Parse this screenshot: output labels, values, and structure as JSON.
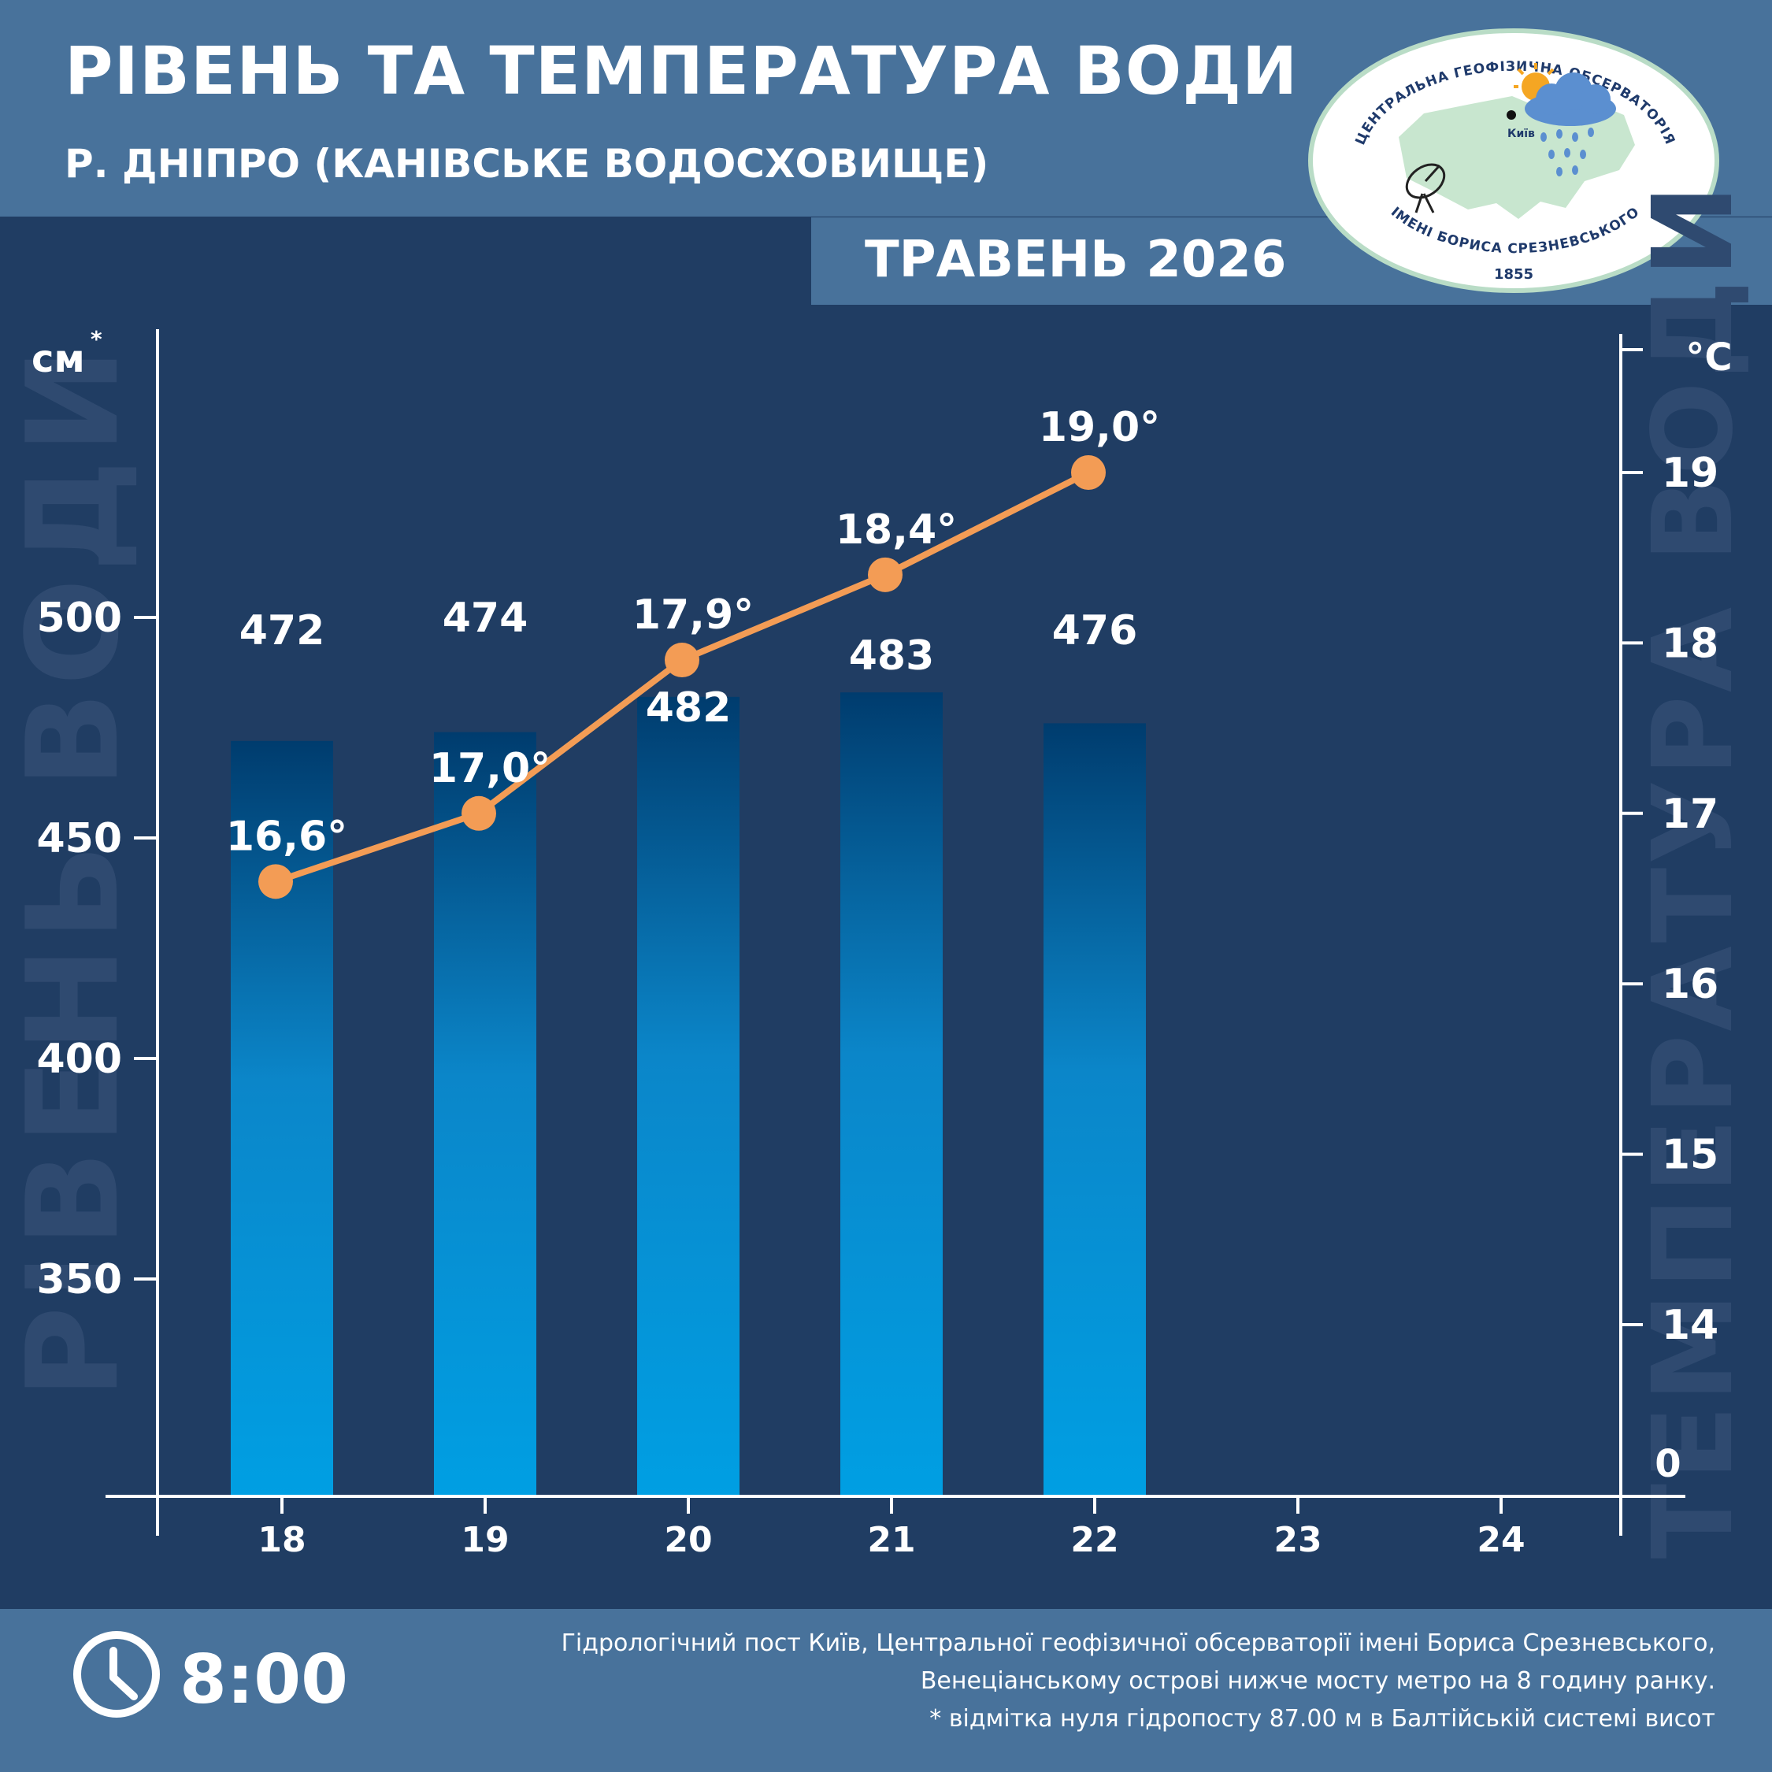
{
  "header": {
    "title": "РІВЕНЬ ТА ТЕМПЕРАТУРА ВОДИ",
    "subtitle": "Р. ДНІПРО (КАНІВСЬКЕ ВОДОСХОВИЩЕ)",
    "month": "ТРАВЕНЬ 2026"
  },
  "logo": {
    "text_top": "ЦЕНТРАЛЬНА ГЕОФІЗИЧНА ОБСЕРВАТОРІЯ",
    "text_bottom": "ІМЕНІ БОРИСА СРЕЗНЕВСЬКОГО",
    "year": "1855",
    "city": "Київ"
  },
  "footer": {
    "time": "8:00",
    "notes": [
      "Гідрологічний пост Київ, Центральної геофізичної обсерваторії імені Бориса Срезневського,",
      "Венеціанському острові нижче мосту метро  на 8 годину ранку.",
      "* відмітка нуля гідропосту 87.00 м в Балтійській системі висот"
    ]
  },
  "chart_data": {
    "type": "bar+line",
    "x_categories": [
      "18",
      "19",
      "20",
      "21",
      "22",
      "23",
      "24"
    ],
    "left_axis": {
      "unit": "см",
      "unit_mark": "*",
      "watermark": "РІВЕНЬ ВОДИ",
      "ticks": [
        350,
        400,
        450,
        500
      ],
      "range": [
        300,
        520
      ]
    },
    "right_axis": {
      "unit": "°C",
      "watermark": "ТЕМПЕРАТУРА ВОДИ",
      "ticks": [
        14,
        15,
        16,
        17,
        18,
        19
      ],
      "zero_label": "0",
      "range": [
        13.0,
        19.85
      ]
    },
    "series": [
      {
        "kind": "bar",
        "categories": [
          "18",
          "19",
          "20",
          "21",
          "22"
        ],
        "values": [
          472,
          474,
          482,
          483,
          476
        ],
        "labels": [
          "472",
          "474",
          "482",
          "483",
          "476"
        ]
      },
      {
        "kind": "line",
        "categories": [
          "18",
          "19",
          "20",
          "21",
          "22"
        ],
        "values": [
          16.6,
          17.0,
          17.9,
          18.4,
          19.0
        ],
        "labels": [
          "16,6°",
          "17,0°",
          "17,9°",
          "18,4°",
          "19,0°"
        ]
      }
    ],
    "colors": {
      "background": "#203d63",
      "bar_top": "#003c6e",
      "bar_bottom": "#009fe3",
      "line": "#f39c55",
      "axis": "#ffffff",
      "watermark": "#2f4a70"
    },
    "grid": false
  }
}
